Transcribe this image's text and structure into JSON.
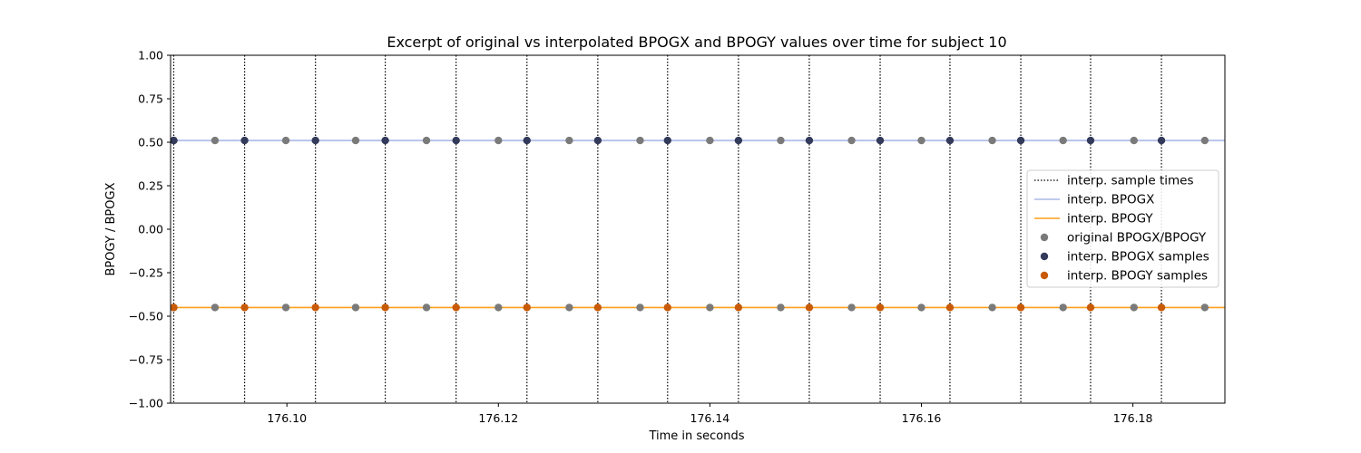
{
  "chart_data": {
    "type": "line",
    "title": "Excerpt of original vs interpolated BPOGX and BPOGY values over time for subject 10",
    "xlabel": "Time in seconds",
    "ylabel": "BPOGY / BPOGX",
    "xlim": [
      176.089,
      176.1887
    ],
    "ylim": [
      -1.0,
      1.0
    ],
    "xticks": [
      "176.10",
      "176.12",
      "176.14",
      "176.16",
      "176.18"
    ],
    "xtick_values": [
      176.1,
      176.12,
      176.14,
      176.16,
      176.18
    ],
    "yticks": [
      "1.00",
      "0.75",
      "0.50",
      "0.25",
      "0.00",
      "−0.25",
      "−0.50",
      "−0.75",
      "−1.00"
    ],
    "ytick_values": [
      1.0,
      0.75,
      0.5,
      0.25,
      0.0,
      -0.25,
      -0.5,
      -0.75,
      -1.0
    ],
    "grid": false,
    "legend_position": "right",
    "interp_sample_times": [
      176.0893,
      176.096,
      176.1027,
      176.1093,
      176.116,
      176.1227,
      176.1294,
      176.136,
      176.1427,
      176.1494,
      176.1561,
      176.1627,
      176.1694,
      176.176,
      176.1827,
      176.1894
    ],
    "original_times": [
      176.0893,
      176.0932,
      176.0999,
      176.1065,
      176.1132,
      176.12,
      176.1267,
      176.1334,
      176.14,
      176.1467,
      176.1534,
      176.16,
      176.1667,
      176.1734,
      176.1801,
      176.1868,
      176.1894
    ],
    "series": [
      {
        "name": "interp. sample times",
        "kind": "vline",
        "color": "#000000"
      },
      {
        "name": "interp. BPOGX",
        "kind": "line",
        "color": "#aab8e8",
        "y": [
          0.51,
          0.51
        ]
      },
      {
        "name": "interp. BPOGY",
        "kind": "line",
        "color": "#ff9f1a",
        "y": [
          -0.45,
          -0.45
        ]
      },
      {
        "name": "original BPOGX/BPOGY",
        "kind": "points",
        "color": "#7a7a7a",
        "bpogx": 0.51,
        "bpogy": -0.45
      },
      {
        "name": "interp. BPOGX samples",
        "kind": "points",
        "color": "#333a5a",
        "value": 0.51
      },
      {
        "name": "interp. BPOGY samples",
        "kind": "points",
        "color": "#c85a08",
        "value": -0.45
      }
    ]
  }
}
